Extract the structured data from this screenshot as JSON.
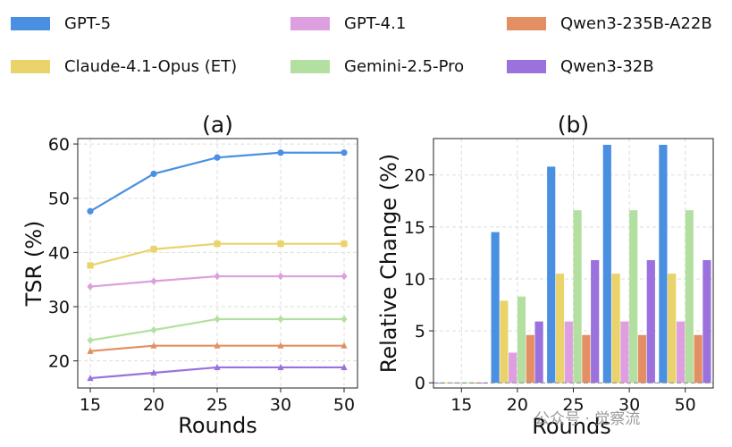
{
  "legend": [
    {
      "name": "GPT-5",
      "color": "#4a90e2"
    },
    {
      "name": "GPT-4.1",
      "color": "#dd9fdf"
    },
    {
      "name": "Qwen3-235B-A22B",
      "color": "#e48f63"
    },
    {
      "name": "Claude-4.1-Opus (ET)",
      "color": "#ead36a"
    },
    {
      "name": "Gemini-2.5-Pro",
      "color": "#b3e0a0"
    },
    {
      "name": "Qwen3-32B",
      "color": "#9b71dd"
    }
  ],
  "chart_data": [
    {
      "type": "line",
      "title": "(a)",
      "xlabel": "Rounds",
      "ylabel": "TSR (%)",
      "categories": [
        "15",
        "20",
        "25",
        "30",
        "50"
      ],
      "ylim": [
        15,
        61
      ],
      "yticks": [
        20,
        30,
        40,
        50,
        60
      ],
      "series": [
        {
          "name": "GPT-5",
          "color": "#4a90e2",
          "marker": "circle",
          "values": [
            47.6,
            54.5,
            57.5,
            58.4,
            58.4
          ]
        },
        {
          "name": "Claude-4.1-Opus (ET)",
          "color": "#ead36a",
          "marker": "square",
          "values": [
            37.6,
            40.6,
            41.6,
            41.6,
            41.6
          ]
        },
        {
          "name": "GPT-4.1",
          "color": "#dd9fdf",
          "marker": "diamond",
          "values": [
            33.7,
            34.7,
            35.6,
            35.6,
            35.6
          ]
        },
        {
          "name": "Gemini-2.5-Pro",
          "color": "#b3e0a0",
          "marker": "diamond",
          "values": [
            23.8,
            25.7,
            27.7,
            27.7,
            27.7
          ]
        },
        {
          "name": "Qwen3-235B-A22B",
          "color": "#e48f63",
          "marker": "triangle",
          "values": [
            21.8,
            22.8,
            22.8,
            22.8,
            22.8
          ]
        },
        {
          "name": "Qwen3-32B",
          "color": "#9b71dd",
          "marker": "triangle",
          "values": [
            16.8,
            17.8,
            18.8,
            18.8,
            18.8
          ]
        }
      ]
    },
    {
      "type": "bar",
      "title": "(b)",
      "xlabel": "Rounds",
      "ylabel": "Relative Change (%)",
      "categories": [
        "15",
        "20",
        "25",
        "30",
        "50"
      ],
      "ylim": [
        -0.5,
        23.5
      ],
      "yticks": [
        0,
        5,
        10,
        15,
        20
      ],
      "series": [
        {
          "name": "GPT-5",
          "color": "#4a90e2",
          "values": [
            0,
            14.5,
            20.8,
            22.9,
            22.9
          ]
        },
        {
          "name": "Claude-4.1-Opus (ET)",
          "color": "#ead36a",
          "values": [
            0,
            7.9,
            10.5,
            10.5,
            10.5
          ]
        },
        {
          "name": "GPT-4.1",
          "color": "#dd9fdf",
          "values": [
            0,
            2.9,
            5.9,
            5.9,
            5.9
          ]
        },
        {
          "name": "Gemini-2.5-Pro",
          "color": "#b3e0a0",
          "values": [
            0,
            8.3,
            16.6,
            16.6,
            16.6
          ]
        },
        {
          "name": "Qwen3-235B-A22B",
          "color": "#e48f63",
          "values": [
            0,
            4.6,
            4.6,
            4.6,
            4.6
          ]
        },
        {
          "name": "Qwen3-32B",
          "color": "#9b71dd",
          "values": [
            0,
            5.9,
            11.8,
            11.8,
            11.8
          ]
        }
      ]
    }
  ],
  "watermark": "公众号 · 觉察流"
}
